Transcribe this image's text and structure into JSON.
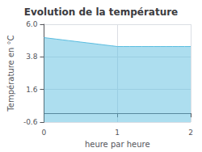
{
  "chart_data": {
    "type": "area",
    "title": "Evolution de la température",
    "xlabel": "heure par heure",
    "ylabel": "Température en °C",
    "x": [
      0,
      0.083,
      0.167,
      0.25,
      0.333,
      0.417,
      0.5,
      0.583,
      0.667,
      0.75,
      0.833,
      0.917,
      1.0,
      1.083,
      1.167,
      1.25,
      1.333,
      1.417,
      1.5,
      1.583,
      1.667,
      1.75,
      1.833,
      1.917,
      2.0
    ],
    "values": [
      5.1,
      5.05,
      5.0,
      4.95,
      4.9,
      4.85,
      4.8,
      4.75,
      4.7,
      4.65,
      4.6,
      4.55,
      4.5,
      4.5,
      4.5,
      4.5,
      4.5,
      4.5,
      4.5,
      4.5,
      4.5,
      4.5,
      4.5,
      4.5,
      4.5
    ],
    "color": "#5bbde0",
    "xlim": [
      0,
      2
    ],
    "xticks": [
      0,
      1,
      2
    ],
    "ylim": [
      -0.6,
      6.0
    ],
    "yticks": [
      -0.6,
      1.6,
      3.8,
      {
        "value": 6.0,
        "label": "6.0"
      }
    ],
    "grid": true
  }
}
